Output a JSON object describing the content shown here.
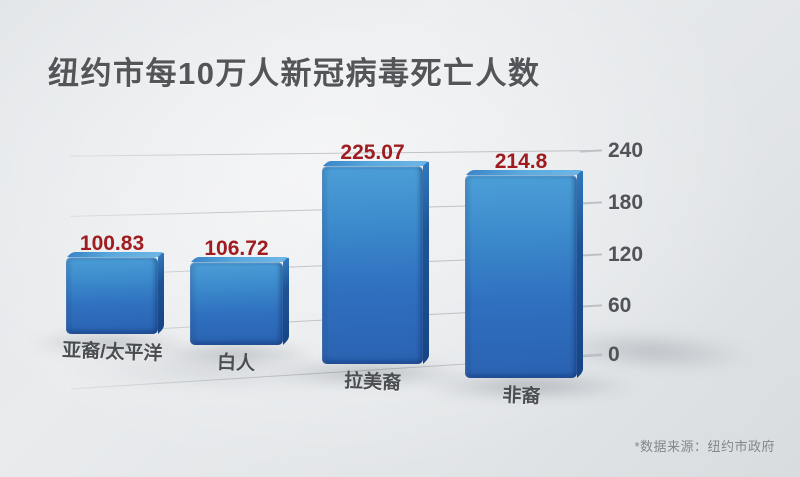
{
  "title": "纽约市每10万人新冠病毒死亡人数",
  "source_note": "*数据来源：纽约市政府",
  "chart_data": {
    "type": "bar",
    "title": "纽约市每10万人新冠病毒死亡人数",
    "categories": [
      "亚裔/太平洋",
      "白人",
      "拉美裔",
      "非裔"
    ],
    "values": [
      100.83,
      106.72,
      225.07,
      214.8
    ],
    "value_labels": [
      "100.83",
      "106.72",
      "225.07",
      "214.8"
    ],
    "yticks": [
      "240",
      "180",
      "120",
      "60",
      "0"
    ],
    "ylim": [
      0,
      240
    ],
    "ylabel": "",
    "xlabel": "",
    "grid": true,
    "axis_side": "right",
    "legend": "none",
    "style": "3d-perspective",
    "source": "*数据来源：纽约市政府",
    "colors": {
      "bar_main": "#2f70bf",
      "bar_light": "#4c9fd7",
      "bar_dark_side": "#164584",
      "value_label": "#9f1d20",
      "text": "#535558",
      "background": "#e5e8ea"
    }
  }
}
